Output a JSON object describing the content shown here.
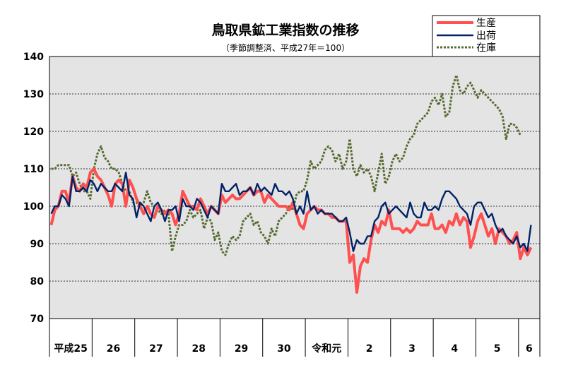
{
  "chart_data": {
    "type": "line",
    "title": "鳥取県鉱工業指数の推移",
    "subtitle": "（季節調整済、平成27年＝100）",
    "ylim": [
      70,
      140
    ],
    "yticks": [
      70,
      80,
      90,
      100,
      110,
      120,
      130,
      140
    ],
    "grid": true,
    "legend_position": "top-right",
    "period_labels": [
      "平成25",
      "26",
      "27",
      "28",
      "29",
      "30",
      "令和元",
      "2",
      "3",
      "4",
      "5",
      "6"
    ],
    "months_per_period": [
      12,
      12,
      12,
      12,
      12,
      12,
      12,
      12,
      12,
      12,
      12,
      6
    ],
    "series": [
      {
        "name": "生産",
        "color": "#ff5050",
        "style": "solid",
        "values": [
          95,
          99,
          100,
          104,
          104,
          101,
          108,
          105,
          104,
          106,
          105,
          109,
          110,
          108,
          107,
          105,
          103,
          100,
          106,
          107,
          106,
          100,
          107,
          105,
          102,
          100,
          98,
          100,
          98,
          97,
          100,
          99,
          98,
          99,
          98,
          95,
          98,
          104,
          102,
          100,
          100,
          99,
          102,
          100,
          98,
          100,
          99,
          98,
          103,
          101,
          102,
          103,
          102,
          102,
          103,
          104,
          105,
          103,
          104,
          104,
          101,
          103,
          102,
          101,
          100,
          100,
          100,
          99,
          101,
          98,
          95,
          94,
          98,
          99,
          100,
          99,
          99,
          98,
          98,
          97,
          97,
          96,
          96,
          96,
          85,
          87,
          77,
          84,
          86,
          85,
          91,
          95,
          93,
          96,
          95,
          99,
          94,
          94,
          94,
          93,
          94,
          93,
          94,
          96,
          95,
          95,
          95,
          98,
          94,
          94,
          95,
          93,
          96,
          95,
          98,
          95,
          97,
          96,
          89,
          92,
          96,
          98,
          95,
          92,
          94,
          90,
          94,
          93,
          92,
          90,
          91,
          93,
          86,
          89,
          87,
          89
        ]
      },
      {
        "name": "出荷",
        "color": "#002266",
        "style": "solid",
        "values": [
          98,
          100,
          100,
          103,
          102,
          100,
          108,
          104,
          104,
          105,
          104,
          107,
          106,
          104,
          106,
          105,
          104,
          104,
          106,
          105,
          104,
          109,
          103,
          102,
          97,
          101,
          100,
          98,
          96,
          100,
          101,
          99,
          96,
          99,
          99,
          100,
          96,
          102,
          100,
          100,
          99,
          102,
          101,
          99,
          97,
          100,
          99,
          98,
          106,
          104,
          104,
          105,
          106,
          103,
          104,
          104,
          105,
          103,
          106,
          104,
          105,
          104,
          103,
          106,
          104,
          104,
          103,
          104,
          102,
          98,
          100,
          98,
          104,
          99,
          100,
          98,
          99,
          98,
          98,
          98,
          97,
          96,
          96,
          97,
          93,
          88,
          91,
          90,
          90,
          92,
          92,
          96,
          97,
          100,
          101,
          98,
          99,
          100,
          99,
          98,
          97,
          101,
          98,
          97,
          97,
          101,
          99,
          99,
          100,
          99,
          102,
          104,
          104,
          103,
          102,
          100,
          99,
          98,
          95,
          100,
          101,
          101,
          99,
          97,
          98,
          95,
          93,
          94,
          92,
          91,
          90,
          92,
          89,
          90,
          88,
          95
        ]
      },
      {
        "name": "在庫",
        "color": "#556b2f",
        "style": "dotted",
        "values": [
          110,
          110,
          111,
          111,
          111,
          111,
          108,
          109,
          106,
          104,
          104,
          102,
          110,
          114,
          116,
          113,
          112,
          110,
          110,
          109,
          106,
          104,
          104,
          101,
          101,
          100,
          101,
          104,
          101,
          100,
          99,
          98,
          99,
          98,
          88,
          92,
          95,
          95,
          96,
          99,
          97,
          98,
          99,
          94,
          97,
          96,
          91,
          93,
          88,
          87,
          90,
          92,
          91,
          92,
          96,
          97,
          98,
          95,
          96,
          93,
          92,
          90,
          94,
          92,
          96,
          97,
          98,
          100,
          99,
          103,
          104,
          104,
          107,
          112,
          110,
          111,
          112,
          115,
          116,
          115,
          112,
          114,
          110,
          112,
          118,
          110,
          108,
          111,
          109,
          110,
          108,
          104,
          109,
          114,
          106,
          108,
          112,
          114,
          112,
          113,
          116,
          118,
          119,
          122,
          123,
          124,
          125,
          128,
          129,
          127,
          130,
          124,
          125,
          132,
          135,
          131,
          130,
          132,
          133,
          131,
          129,
          131,
          130,
          129,
          128,
          127,
          126,
          124,
          118,
          122,
          122,
          121,
          119
        ]
      }
    ]
  }
}
